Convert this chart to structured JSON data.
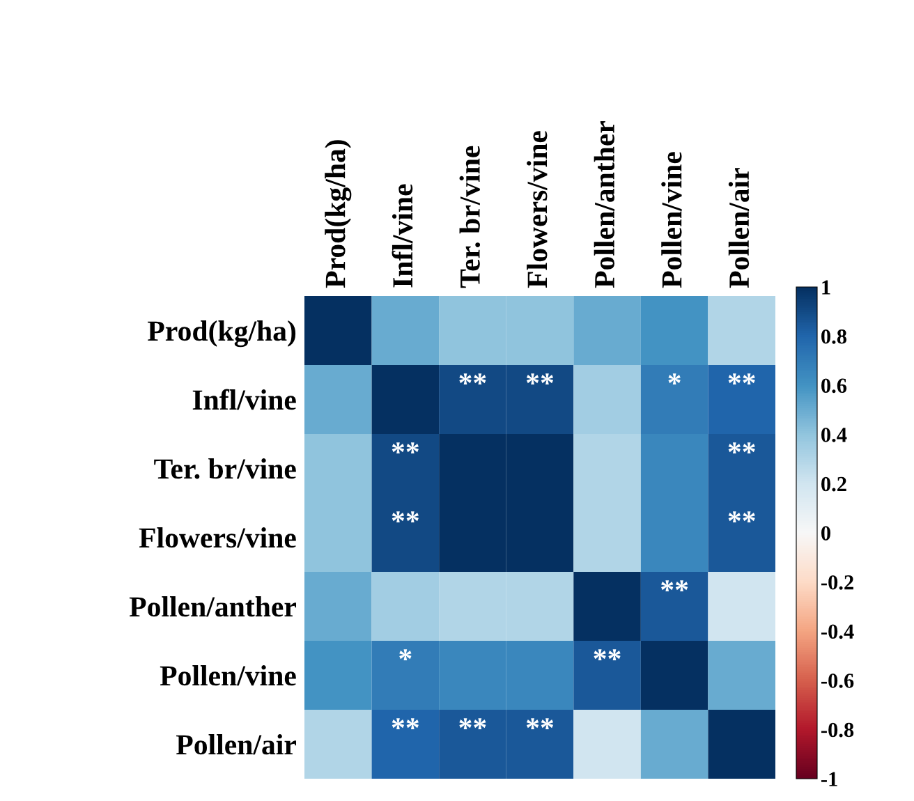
{
  "chart_data": {
    "type": "heatmap",
    "categories": [
      "Prod(kg/ha)",
      "Infl/vine",
      "Ter. br/vine",
      "Flowers/vine",
      "Pollen/anther",
      "Pollen/vine",
      "Pollen/air"
    ],
    "y_categories": [
      "Prod(kg/ha)",
      "Infl/vine",
      "Ter. br/vine",
      "Flowers/vine",
      "Pollen/anther",
      "Pollen/vine",
      "Pollen/air"
    ],
    "cells": [
      [
        1,
        0.5,
        0.4,
        0.4,
        0.5,
        0.6,
        0.3
      ],
      [
        0.5,
        1,
        0.9,
        0.9,
        0.35,
        0.7,
        0.8
      ],
      [
        0.4,
        0.9,
        1,
        1,
        0.3,
        0.65,
        0.85
      ],
      [
        0.4,
        0.9,
        1,
        1,
        0.3,
        0.65,
        0.85
      ],
      [
        0.5,
        0.35,
        0.3,
        0.3,
        1,
        0.85,
        0.2
      ],
      [
        0.6,
        0.7,
        0.65,
        0.65,
        0.85,
        1,
        0.5
      ],
      [
        0.3,
        0.8,
        0.85,
        0.85,
        0.2,
        0.5,
        1
      ]
    ],
    "cell_labels": [
      [
        null,
        null,
        null,
        null,
        null,
        null,
        null
      ],
      [
        null,
        null,
        "**",
        "**",
        null,
        "*",
        "**"
      ],
      [
        null,
        "**",
        null,
        null,
        null,
        null,
        "**"
      ],
      [
        null,
        "**",
        null,
        null,
        null,
        null,
        "**"
      ],
      [
        null,
        null,
        null,
        null,
        null,
        "**",
        null
      ],
      [
        null,
        "*",
        null,
        null,
        "**",
        null,
        null
      ],
      [
        null,
        "**",
        "**",
        "**",
        null,
        null,
        null
      ]
    ],
    "clim": [
      -1,
      1
    ],
    "cticks": [
      -1,
      -0.8,
      -0.6,
      -0.4,
      -0.2,
      0,
      0.2,
      0.4,
      0.6,
      0.8,
      1
    ]
  }
}
